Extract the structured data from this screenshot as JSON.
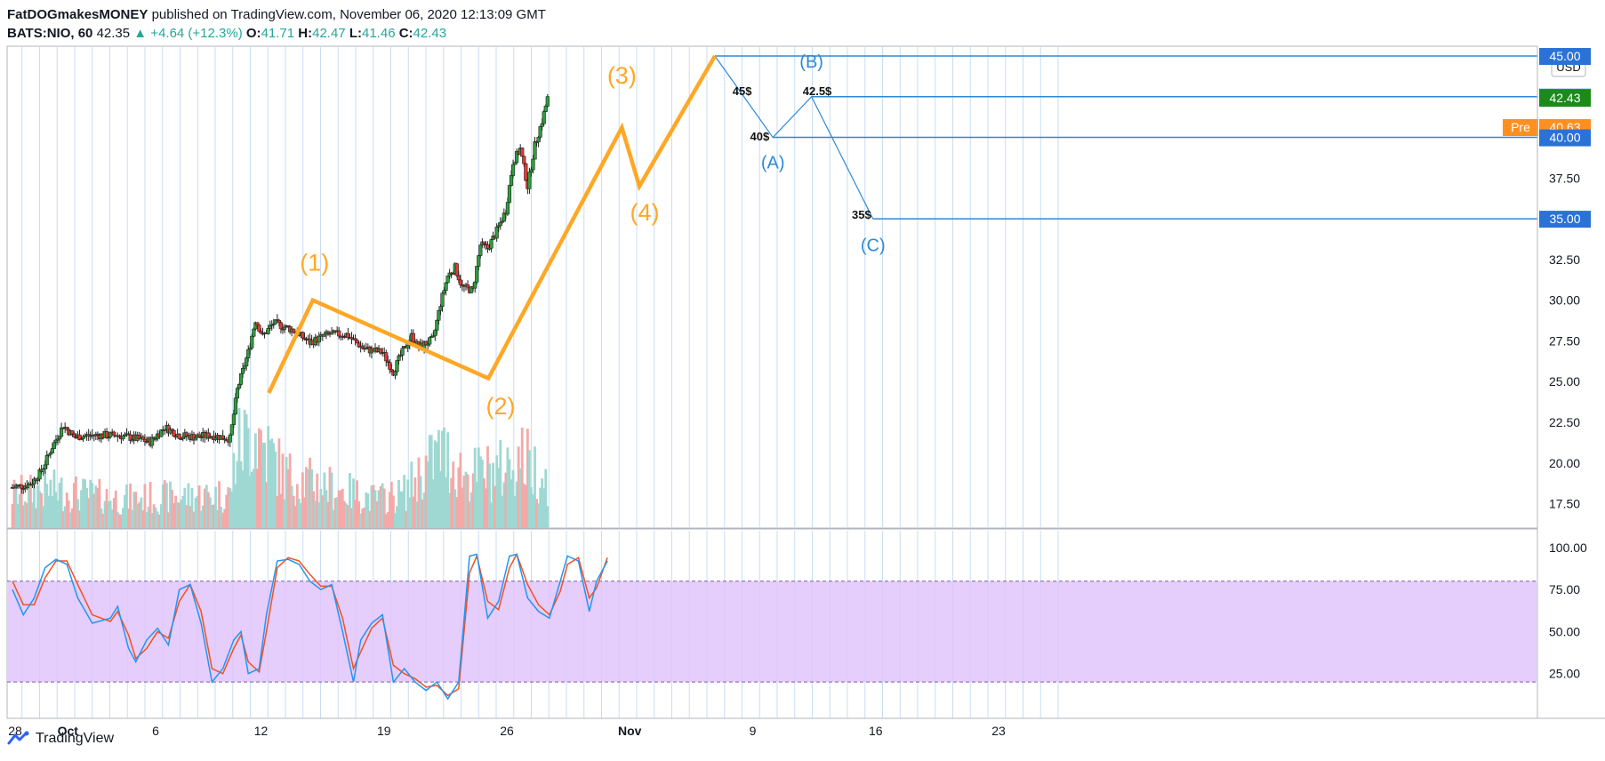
{
  "header": {
    "author": "FatDOGmakesMONEY",
    "published": "published on TradingView.com, November 06, 2020 12:13:09 GMT",
    "symbol": "BATS:NIO, 60",
    "last": "42.35",
    "change": "▲ +4.64 (+12.3%)",
    "o_label": "O:",
    "o": "41.71",
    "h_label": "H:",
    "h": "42.47",
    "l_label": "L:",
    "l": "41.46",
    "c_label": "C:",
    "c": "42.43"
  },
  "footer": {
    "brand": "TradingView"
  },
  "colors": {
    "up": "#26a69a",
    "down": "#ef5350",
    "wave": "#ffa726",
    "abc": "#2f88d6",
    "stoch_k": "#2196f3",
    "stoch_d": "#f4511e",
    "band": "#e1c4fb",
    "grid_v": "#c7ddf3",
    "green_tag": "#1b8a1b",
    "orange_tag": "#ff8f1f",
    "blue_tag": "#2a72d6"
  },
  "chart_data": {
    "type": "candlestick",
    "price_axis": {
      "ylim": [
        16.0,
        45.6
      ],
      "ticks": [
        "17.50",
        "20.00",
        "22.50",
        "25.00",
        "27.50",
        "30.00",
        "32.50",
        "37.50"
      ],
      "unit_label": "USD"
    },
    "price_tags": [
      {
        "label": "45.00",
        "value": 45.0,
        "style": "blue"
      },
      {
        "label": "42.50",
        "value": 42.5,
        "style": "blue"
      },
      {
        "label": "42.43",
        "value": 42.43,
        "style": "green"
      },
      {
        "label": "40.63",
        "value": 40.63,
        "style": "orange",
        "prefix": "Pre"
      },
      {
        "label": "40.00",
        "value": 40.0,
        "style": "blue"
      },
      {
        "label": "35.00",
        "value": 35.0,
        "style": "blue"
      }
    ],
    "x_ticks": [
      {
        "label": "28",
        "day": 0
      },
      {
        "label": "Oct",
        "day": 3
      },
      {
        "label": "6",
        "day": 8
      },
      {
        "label": "12",
        "day": 14
      },
      {
        "label": "19",
        "day": 21
      },
      {
        "label": "26",
        "day": 28
      },
      {
        "label": "Nov",
        "day": 35
      },
      {
        "label": "9",
        "day": 42
      },
      {
        "label": "16",
        "day": 49
      },
      {
        "label": "23",
        "day": 56
      }
    ],
    "anchors": [
      {
        "t": 0,
        "p": 18.5
      },
      {
        "t": 10,
        "p": 18.7
      },
      {
        "t": 16,
        "p": 19.5
      },
      {
        "t": 22,
        "p": 21.0
      },
      {
        "t": 28,
        "p": 22.3
      },
      {
        "t": 34,
        "p": 21.6
      },
      {
        "t": 44,
        "p": 21.7
      },
      {
        "t": 58,
        "p": 21.7
      },
      {
        "t": 68,
        "p": 21.5
      },
      {
        "t": 76,
        "p": 21.3
      },
      {
        "t": 84,
        "p": 22.2
      },
      {
        "t": 92,
        "p": 21.7
      },
      {
        "t": 100,
        "p": 21.6
      },
      {
        "t": 110,
        "p": 21.7
      },
      {
        "t": 120,
        "p": 21.5
      },
      {
        "t": 124,
        "p": 24.5
      },
      {
        "t": 130,
        "p": 26.8
      },
      {
        "t": 134,
        "p": 28.8
      },
      {
        "t": 138,
        "p": 27.8
      },
      {
        "t": 144,
        "p": 28.6
      },
      {
        "t": 154,
        "p": 28.2
      },
      {
        "t": 164,
        "p": 27.4
      },
      {
        "t": 174,
        "p": 27.9
      },
      {
        "t": 184,
        "p": 27.9
      },
      {
        "t": 194,
        "p": 27.0
      },
      {
        "t": 204,
        "p": 26.8
      },
      {
        "t": 210,
        "p": 25.6
      },
      {
        "t": 214,
        "p": 26.6
      },
      {
        "t": 220,
        "p": 27.8
      },
      {
        "t": 224,
        "p": 27.1
      },
      {
        "t": 232,
        "p": 27.6
      },
      {
        "t": 236,
        "p": 29.8
      },
      {
        "t": 240,
        "p": 31.5
      },
      {
        "t": 244,
        "p": 32.0
      },
      {
        "t": 248,
        "p": 30.8
      },
      {
        "t": 254,
        "p": 30.6
      },
      {
        "t": 258,
        "p": 33.4
      },
      {
        "t": 262,
        "p": 33.2
      },
      {
        "t": 266,
        "p": 34.0
      },
      {
        "t": 272,
        "p": 35.5
      },
      {
        "t": 276,
        "p": 38.5
      },
      {
        "t": 280,
        "p": 39.3
      },
      {
        "t": 284,
        "p": 37.0
      },
      {
        "t": 288,
        "p": 39.5
      },
      {
        "t": 292,
        "p": 41.0
      },
      {
        "t": 295,
        "p": 42.4
      }
    ],
    "volume_anchors": [
      {
        "t": 0,
        "v": 0.35
      },
      {
        "t": 20,
        "v": 0.4
      },
      {
        "t": 60,
        "v": 0.3
      },
      {
        "t": 120,
        "v": 0.35
      },
      {
        "t": 124,
        "v": 0.85
      },
      {
        "t": 134,
        "v": 1.0
      },
      {
        "t": 150,
        "v": 0.55
      },
      {
        "t": 200,
        "v": 0.3
      },
      {
        "t": 215,
        "v": 0.35
      },
      {
        "t": 236,
        "v": 0.8
      },
      {
        "t": 250,
        "v": 0.55
      },
      {
        "t": 270,
        "v": 0.6
      },
      {
        "t": 280,
        "v": 0.75
      },
      {
        "t": 295,
        "v": 0.5
      }
    ],
    "stoch_k": [
      [
        0,
        75
      ],
      [
        6,
        60
      ],
      [
        12,
        70
      ],
      [
        18,
        88
      ],
      [
        24,
        93
      ],
      [
        30,
        90
      ],
      [
        36,
        70
      ],
      [
        44,
        55
      ],
      [
        54,
        58
      ],
      [
        58,
        65
      ],
      [
        64,
        40
      ],
      [
        68,
        32
      ],
      [
        74,
        45
      ],
      [
        80,
        52
      ],
      [
        86,
        42
      ],
      [
        92,
        75
      ],
      [
        98,
        78
      ],
      [
        104,
        55
      ],
      [
        110,
        20
      ],
      [
        116,
        28
      ],
      [
        122,
        45
      ],
      [
        126,
        50
      ],
      [
        130,
        25
      ],
      [
        136,
        28
      ],
      [
        140,
        60
      ],
      [
        146,
        92
      ],
      [
        152,
        93
      ],
      [
        158,
        90
      ],
      [
        164,
        80
      ],
      [
        170,
        75
      ],
      [
        176,
        78
      ],
      [
        182,
        50
      ],
      [
        188,
        20
      ],
      [
        192,
        45
      ],
      [
        198,
        55
      ],
      [
        204,
        60
      ],
      [
        210,
        20
      ],
      [
        216,
        28
      ],
      [
        222,
        20
      ],
      [
        228,
        15
      ],
      [
        234,
        20
      ],
      [
        240,
        10
      ],
      [
        246,
        20
      ],
      [
        252,
        95
      ],
      [
        256,
        96
      ],
      [
        262,
        58
      ],
      [
        268,
        68
      ],
      [
        274,
        95
      ],
      [
        278,
        96
      ],
      [
        284,
        70
      ],
      [
        290,
        62
      ],
      [
        296,
        58
      ],
      [
        302,
        80
      ],
      [
        306,
        95
      ],
      [
        312,
        92
      ],
      [
        318,
        62
      ],
      [
        322,
        80
      ],
      [
        328,
        92
      ]
    ],
    "stoch_d": [
      [
        0,
        80
      ],
      [
        6,
        66
      ],
      [
        12,
        66
      ],
      [
        18,
        82
      ],
      [
        24,
        92
      ],
      [
        30,
        92
      ],
      [
        36,
        78
      ],
      [
        44,
        60
      ],
      [
        54,
        56
      ],
      [
        58,
        62
      ],
      [
        64,
        48
      ],
      [
        68,
        34
      ],
      [
        74,
        40
      ],
      [
        80,
        50
      ],
      [
        86,
        46
      ],
      [
        92,
        68
      ],
      [
        98,
        78
      ],
      [
        104,
        62
      ],
      [
        110,
        28
      ],
      [
        116,
        25
      ],
      [
        122,
        40
      ],
      [
        126,
        48
      ],
      [
        130,
        32
      ],
      [
        136,
        26
      ],
      [
        140,
        50
      ],
      [
        146,
        88
      ],
      [
        152,
        94
      ],
      [
        158,
        92
      ],
      [
        164,
        84
      ],
      [
        170,
        77
      ],
      [
        176,
        77
      ],
      [
        182,
        58
      ],
      [
        188,
        28
      ],
      [
        192,
        38
      ],
      [
        198,
        52
      ],
      [
        204,
        58
      ],
      [
        210,
        30
      ],
      [
        216,
        25
      ],
      [
        222,
        22
      ],
      [
        228,
        17
      ],
      [
        234,
        18
      ],
      [
        240,
        12
      ],
      [
        246,
        16
      ],
      [
        252,
        85
      ],
      [
        256,
        95
      ],
      [
        262,
        68
      ],
      [
        268,
        63
      ],
      [
        274,
        88
      ],
      [
        278,
        96
      ],
      [
        284,
        78
      ],
      [
        290,
        66
      ],
      [
        296,
        60
      ],
      [
        302,
        74
      ],
      [
        306,
        90
      ],
      [
        312,
        94
      ],
      [
        318,
        70
      ],
      [
        322,
        76
      ],
      [
        328,
        94
      ]
    ],
    "stoch_axis": {
      "ylim": [
        0,
        110
      ],
      "ticks": [
        "25.00",
        "50.00",
        "75.00",
        "100.00"
      ],
      "band": [
        20,
        80
      ]
    },
    "elliott": [
      {
        "day": 14.6,
        "price": 24.3
      },
      {
        "day": 17.1,
        "price": 30.0
      },
      {
        "day": 27.1,
        "price": 25.2
      },
      {
        "day": 34.7,
        "price": 40.6
      },
      {
        "day": 35.7,
        "price": 37.0
      },
      {
        "day": 40.0,
        "price": 45.0
      }
    ],
    "wave_labels": [
      {
        "text": "(1)",
        "day": 17.2,
        "price": 31.8
      },
      {
        "text": "(2)",
        "day": 27.8,
        "price": 23.0
      },
      {
        "text": "(3)",
        "day": 34.7,
        "price": 43.3
      },
      {
        "text": "(4)",
        "day": 36.0,
        "price": 34.9
      }
    ],
    "abc_path": [
      {
        "day": 40.0,
        "price": 45.0
      },
      {
        "day": 43.3,
        "price": 40.0
      },
      {
        "day": 45.5,
        "price": 42.5
      },
      {
        "day": 49.0,
        "price": 35.0
      }
    ],
    "abc_labels": [
      {
        "text": "(B)",
        "day": 45.5,
        "price": 44.3
      },
      {
        "text": "(A)",
        "day": 43.3,
        "price": 38.1
      },
      {
        "text": "(C)",
        "day": 49.0,
        "price": 33.0
      }
    ],
    "level_lines": [
      {
        "price": 45.0,
        "from_day": 40.0
      },
      {
        "price": 42.5,
        "from_day": 45.5
      },
      {
        "price": 40.0,
        "from_day": 43.3
      },
      {
        "price": 35.0,
        "from_day": 49.0
      }
    ],
    "level_notes": [
      {
        "text": "45$",
        "day": 41.0,
        "price": 42.6
      },
      {
        "text": "42.5$",
        "day": 45.0,
        "price": 42.6
      },
      {
        "text": "40$",
        "day": 42.0,
        "price": 39.8
      },
      {
        "text": "35$",
        "day": 47.8,
        "price": 35.0
      }
    ]
  }
}
